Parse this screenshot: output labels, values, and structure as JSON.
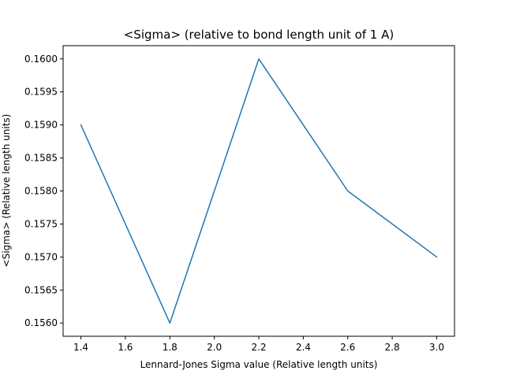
{
  "chart_data": {
    "type": "line",
    "title": "<Sigma> (relative to bond length unit of 1 A)",
    "xlabel": "Lennard-Jones Sigma value (Relative length units)",
    "ylabel": "<Sigma> (Relative length units)",
    "xlim": [
      1.32,
      3.08
    ],
    "ylim": [
      0.1558,
      0.1602
    ],
    "xticks": [
      1.4,
      1.6,
      1.8,
      2.0,
      2.2,
      2.4,
      2.6,
      2.8,
      3.0
    ],
    "xtick_labels": [
      "1.4",
      "1.6",
      "1.8",
      "2.0",
      "2.2",
      "2.4",
      "2.6",
      "2.8",
      "3.0"
    ],
    "yticks": [
      0.156,
      0.1565,
      0.157,
      0.1575,
      0.158,
      0.1585,
      0.159,
      0.1595,
      0.16
    ],
    "ytick_labels": [
      "0.1560",
      "0.1565",
      "0.1570",
      "0.1575",
      "0.1580",
      "0.1585",
      "0.1590",
      "0.1595",
      "0.1600"
    ],
    "grid": false,
    "series": [
      {
        "x": [
          1.4,
          1.8,
          2.2,
          2.6,
          3.0
        ],
        "y": [
          0.159,
          0.156,
          0.16,
          0.158,
          0.157
        ],
        "color": "#1f77b4"
      }
    ]
  }
}
